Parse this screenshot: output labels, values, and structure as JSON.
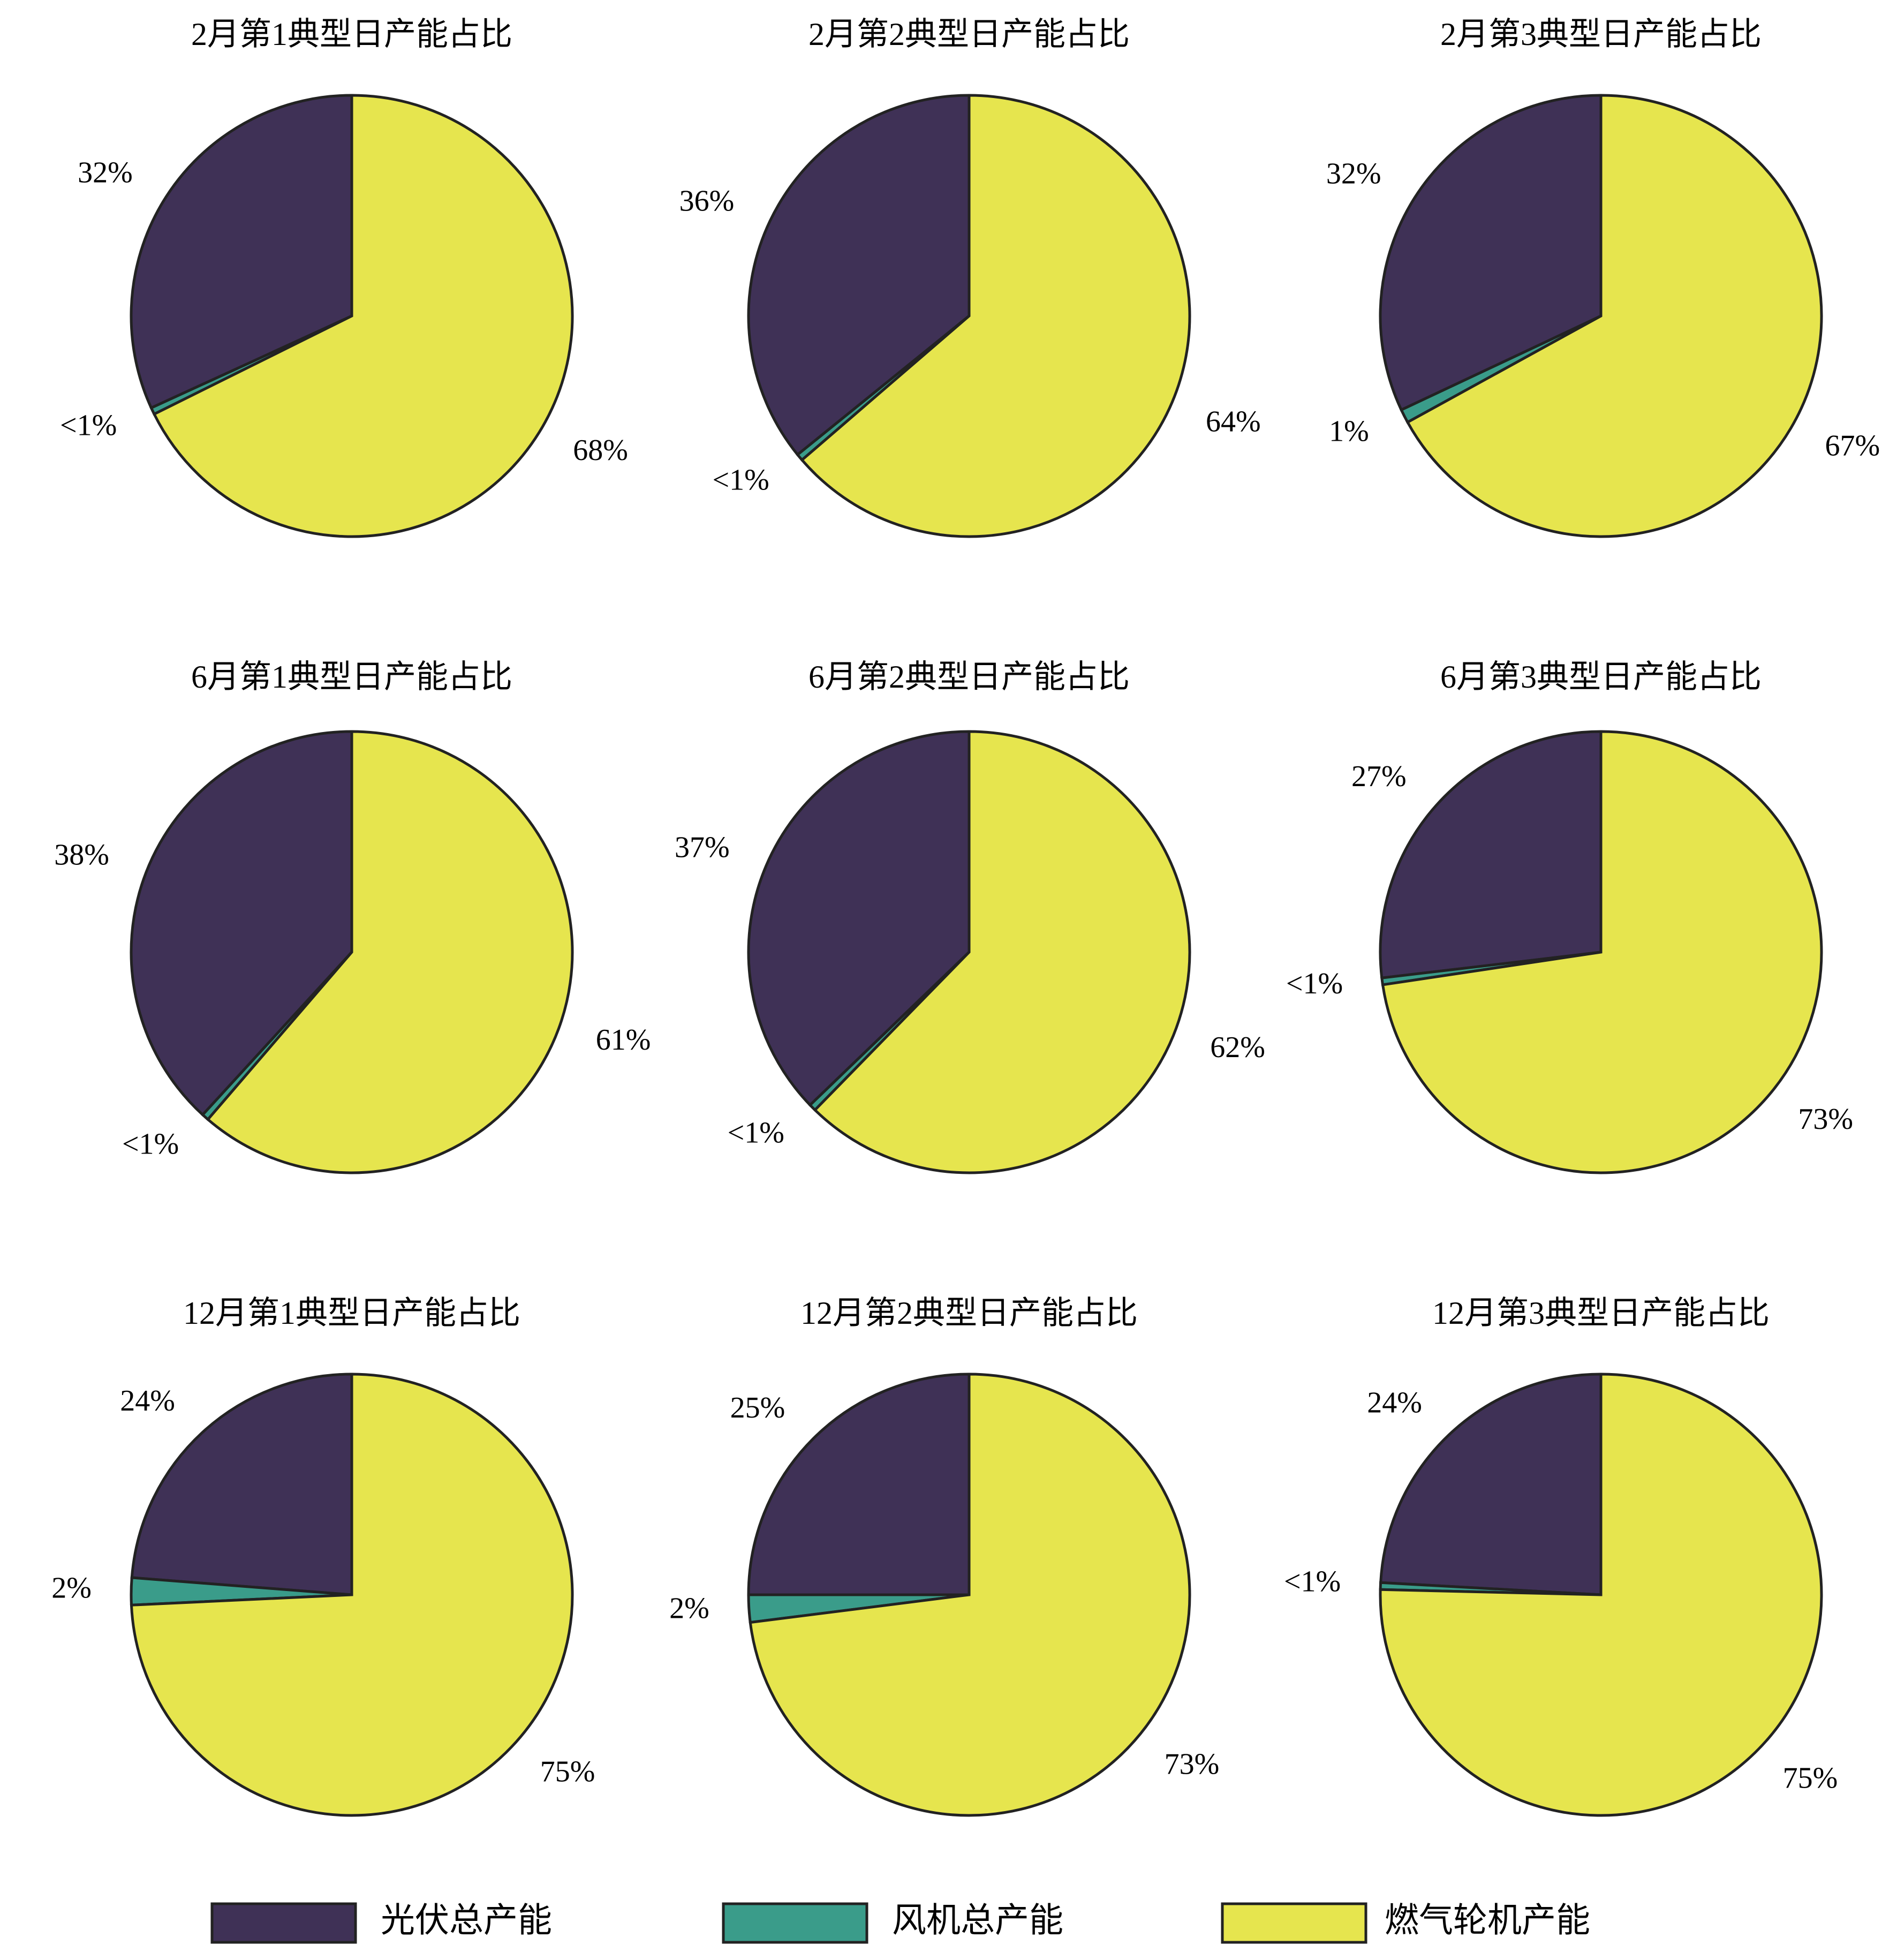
{
  "legend": {
    "labels": [
      "光伏总产能",
      "风机总产能",
      "燃气轮机产能"
    ],
    "colors": [
      "#3f3156",
      "#3a9c8a",
      "#e6e54e"
    ]
  },
  "chart_data": [
    {
      "type": "pie",
      "title": "2月第1典型日产能占比",
      "values": [
        32,
        0.5,
        68
      ],
      "value_labels": [
        "32%",
        "<1%",
        "68%"
      ]
    },
    {
      "type": "pie",
      "title": "2月第2典型日产能占比",
      "values": [
        36,
        0.5,
        64
      ],
      "value_labels": [
        "36%",
        "<1%",
        "64%"
      ]
    },
    {
      "type": "pie",
      "title": "2月第3典型日产能占比",
      "values": [
        32,
        1,
        67
      ],
      "value_labels": [
        "32%",
        "1%",
        "67%"
      ]
    },
    {
      "type": "pie",
      "title": "6月第1典型日产能占比",
      "values": [
        38,
        0.5,
        61
      ],
      "value_labels": [
        "38%",
        "<1%",
        "61%"
      ]
    },
    {
      "type": "pie",
      "title": "6月第2典型日产能占比",
      "values": [
        37,
        0.5,
        62
      ],
      "value_labels": [
        "37%",
        "<1%",
        "62%"
      ]
    },
    {
      "type": "pie",
      "title": "6月第3典型日产能占比",
      "values": [
        27,
        0.5,
        73
      ],
      "value_labels": [
        "27%",
        "<1%",
        "73%"
      ]
    },
    {
      "type": "pie",
      "title": "12月第1典型日产能占比",
      "values": [
        24,
        2,
        75
      ],
      "value_labels": [
        "24%",
        "2%",
        "75%"
      ]
    },
    {
      "type": "pie",
      "title": "12月第2典型日产能占比",
      "values": [
        25,
        2,
        73
      ],
      "value_labels": [
        "25%",
        "2%",
        "73%"
      ]
    },
    {
      "type": "pie",
      "title": "12月第3典型日产能占比",
      "values": [
        24,
        0.5,
        75
      ],
      "value_labels": [
        "24%",
        "<1%",
        "75%"
      ]
    }
  ]
}
